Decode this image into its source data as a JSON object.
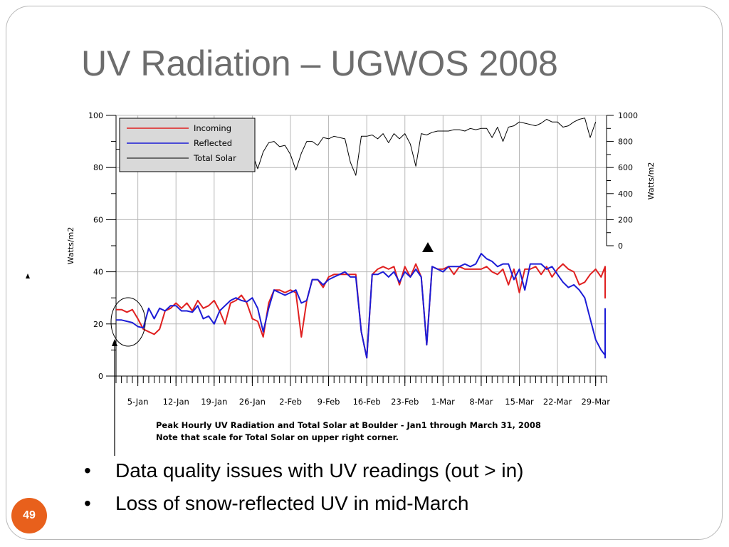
{
  "slide": {
    "title": "UV Radiation – UGWOS 2008",
    "page_number": "49",
    "bullets": [
      "Data quality issues with UV readings (out > in)",
      "Loss of snow-reflected UV in mid-March"
    ],
    "caption_line1": "Peak Hourly UV Radiation and Total Solar at Boulder - Jan1 through March 31, 2008",
    "caption_line2": "Note that scale for Total Solar on upper right corner."
  },
  "chart_data": {
    "type": "line",
    "ylabel": "Watts/m2",
    "y2label": "Watts/m2",
    "ylim": [
      0,
      100
    ],
    "y2lim": [
      0,
      1000
    ],
    "yticks": [
      0,
      20,
      40,
      60,
      80,
      100
    ],
    "y2ticks": [
      0,
      200,
      400,
      600,
      800,
      1000
    ],
    "xticks": [
      "5-Jan",
      "12-Jan",
      "19-Jan",
      "26-Jan",
      "2-Feb",
      "9-Feb",
      "16-Feb",
      "23-Feb",
      "1-Mar",
      "8-Mar",
      "15-Mar",
      "22-Mar",
      "29-Mar"
    ],
    "xlim": [
      1,
      91
    ],
    "grid": true,
    "legend_position": "top-left",
    "annotations": [
      "circle around Jan 1-5 UV readings",
      "up-arrow marker near 27-Feb above the UV curves",
      "long arrow pointing up to the circled region"
    ],
    "series": [
      {
        "name": "Incoming",
        "axis": "left",
        "color": "#e02020",
        "points": [
          [
            1,
            25.5
          ],
          [
            2,
            25.5
          ],
          [
            3,
            24.5
          ],
          [
            4,
            25.5
          ],
          [
            5,
            22
          ],
          [
            6,
            18
          ],
          [
            7,
            17
          ],
          [
            8,
            16
          ],
          [
            9,
            18
          ],
          [
            10,
            25
          ],
          [
            11,
            26
          ],
          [
            12,
            28
          ],
          [
            13,
            26
          ],
          [
            14,
            28
          ],
          [
            15,
            25
          ],
          [
            16,
            29
          ],
          [
            17,
            26
          ],
          [
            18,
            27
          ],
          [
            19,
            29
          ],
          [
            20,
            25
          ],
          [
            21,
            20
          ],
          [
            22,
            28
          ],
          [
            23,
            29
          ],
          [
            24,
            31
          ],
          [
            25,
            28
          ],
          [
            26,
            22
          ],
          [
            27,
            21
          ],
          [
            28,
            15
          ],
          [
            29,
            28
          ],
          [
            30,
            33
          ],
          [
            31,
            33
          ],
          [
            32,
            32
          ],
          [
            33,
            33
          ],
          [
            34,
            32
          ],
          [
            35,
            15
          ],
          [
            36,
            29
          ],
          [
            37,
            37
          ],
          [
            38,
            37
          ],
          [
            39,
            34
          ],
          [
            40,
            38
          ],
          [
            41,
            39
          ],
          [
            42,
            39
          ],
          [
            43,
            39
          ],
          [
            44,
            39
          ],
          [
            45,
            39
          ],
          [
            46,
            17
          ],
          [
            47,
            7
          ],
          [
            48,
            39
          ],
          [
            49,
            41
          ],
          [
            50,
            42
          ],
          [
            51,
            41
          ],
          [
            52,
            42
          ],
          [
            53,
            35
          ],
          [
            54,
            42
          ],
          [
            55,
            38
          ],
          [
            56,
            43
          ],
          [
            57,
            38
          ],
          [
            58,
            12
          ],
          [
            59,
            42
          ],
          [
            60,
            41
          ],
          [
            61,
            41
          ],
          [
            62,
            42
          ],
          [
            63,
            39
          ],
          [
            64,
            42
          ],
          [
            65,
            41
          ],
          [
            66,
            41
          ],
          [
            67,
            41
          ],
          [
            68,
            41
          ],
          [
            69,
            42
          ],
          [
            70,
            40
          ],
          [
            71,
            39
          ],
          [
            72,
            41
          ],
          [
            73,
            35
          ],
          [
            74,
            41
          ],
          [
            75,
            32
          ],
          [
            76,
            41
          ],
          [
            77,
            41
          ],
          [
            78,
            42
          ],
          [
            79,
            39
          ],
          [
            80,
            42
          ],
          [
            81,
            38
          ],
          [
            82,
            41
          ],
          [
            83,
            43
          ],
          [
            84,
            41
          ],
          [
            85,
            40
          ],
          [
            86,
            35
          ],
          [
            87,
            36
          ],
          [
            88,
            39
          ],
          [
            89,
            41
          ],
          [
            90,
            38
          ],
          [
            91,
            42
          ],
          [
            92,
            30
          ],
          [
            93,
            41
          ]
        ]
      },
      {
        "name": "Reflected",
        "axis": "left",
        "color": "#1c1cd6",
        "points": [
          [
            1,
            21.5
          ],
          [
            2,
            21.5
          ],
          [
            3,
            21
          ],
          [
            4,
            20.5
          ],
          [
            5,
            19
          ],
          [
            6,
            18.5
          ],
          [
            7,
            26
          ],
          [
            8,
            22
          ],
          [
            9,
            26
          ],
          [
            10,
            25
          ],
          [
            11,
            27
          ],
          [
            12,
            27
          ],
          [
            13,
            25
          ],
          [
            14,
            25
          ],
          [
            15,
            24.5
          ],
          [
            16,
            27
          ],
          [
            17,
            22
          ],
          [
            18,
            23
          ],
          [
            19,
            20
          ],
          [
            20,
            25
          ],
          [
            21,
            27
          ],
          [
            22,
            29
          ],
          [
            23,
            30
          ],
          [
            24,
            29
          ],
          [
            25,
            28.5
          ],
          [
            26,
            30
          ],
          [
            27,
            26
          ],
          [
            28,
            17
          ],
          [
            29,
            26
          ],
          [
            30,
            33
          ],
          [
            31,
            32
          ],
          [
            32,
            31
          ],
          [
            33,
            32
          ],
          [
            34,
            33
          ],
          [
            35,
            28
          ],
          [
            36,
            29
          ],
          [
            37,
            37
          ],
          [
            38,
            37
          ],
          [
            39,
            35
          ],
          [
            40,
            37
          ],
          [
            41,
            38
          ],
          [
            42,
            39
          ],
          [
            43,
            40
          ],
          [
            44,
            38
          ],
          [
            45,
            38
          ],
          [
            46,
            17
          ],
          [
            47,
            7
          ],
          [
            48,
            39
          ],
          [
            49,
            39
          ],
          [
            50,
            40
          ],
          [
            51,
            38
          ],
          [
            52,
            40
          ],
          [
            53,
            36
          ],
          [
            54,
            40
          ],
          [
            55,
            38
          ],
          [
            56,
            41
          ],
          [
            57,
            38
          ],
          [
            58,
            12
          ],
          [
            59,
            42
          ],
          [
            60,
            41
          ],
          [
            61,
            40
          ],
          [
            62,
            42
          ],
          [
            63,
            42
          ],
          [
            64,
            42
          ],
          [
            65,
            43
          ],
          [
            66,
            42
          ],
          [
            67,
            43
          ],
          [
            68,
            47
          ],
          [
            69,
            45
          ],
          [
            70,
            44
          ],
          [
            71,
            42
          ],
          [
            72,
            43
          ],
          [
            73,
            43
          ],
          [
            74,
            37
          ],
          [
            75,
            41
          ],
          [
            76,
            33
          ],
          [
            77,
            43
          ],
          [
            78,
            43
          ],
          [
            79,
            43
          ],
          [
            80,
            41
          ],
          [
            81,
            42
          ],
          [
            82,
            39
          ],
          [
            83,
            36
          ],
          [
            84,
            34
          ],
          [
            85,
            35
          ],
          [
            86,
            33
          ],
          [
            87,
            30
          ],
          [
            88,
            22
          ],
          [
            89,
            14
          ],
          [
            90,
            10
          ],
          [
            91,
            8
          ],
          [
            92,
            7
          ],
          [
            93,
            7
          ],
          [
            94,
            20
          ],
          [
            95,
            26
          ]
        ]
      },
      {
        "name": "Total Solar",
        "axis": "right",
        "color": "#000000",
        "points": [
          [
            1,
            740
          ],
          [
            2,
            740
          ],
          [
            3,
            730
          ],
          [
            4,
            740
          ],
          [
            5,
            670
          ],
          [
            6,
            660
          ],
          [
            7,
            640
          ],
          [
            8,
            620
          ],
          [
            9,
            730
          ],
          [
            10,
            710
          ],
          [
            11,
            750
          ],
          [
            12,
            740
          ],
          [
            13,
            760
          ],
          [
            14,
            640
          ],
          [
            15,
            760
          ],
          [
            16,
            760
          ],
          [
            17,
            720
          ],
          [
            18,
            760
          ],
          [
            19,
            730
          ],
          [
            20,
            700
          ],
          [
            21,
            740
          ],
          [
            22,
            730
          ],
          [
            23,
            770
          ],
          [
            24,
            740
          ],
          [
            25,
            660
          ],
          [
            26,
            710
          ],
          [
            27,
            590
          ],
          [
            28,
            720
          ],
          [
            29,
            790
          ],
          [
            30,
            800
          ],
          [
            31,
            760
          ],
          [
            32,
            770
          ],
          [
            33,
            700
          ],
          [
            34,
            580
          ],
          [
            35,
            710
          ],
          [
            36,
            800
          ],
          [
            37,
            800
          ],
          [
            38,
            770
          ],
          [
            39,
            830
          ],
          [
            40,
            820
          ],
          [
            41,
            840
          ],
          [
            42,
            830
          ],
          [
            43,
            820
          ],
          [
            44,
            640
          ],
          [
            45,
            540
          ],
          [
            46,
            840
          ],
          [
            47,
            840
          ],
          [
            48,
            850
          ],
          [
            49,
            820
          ],
          [
            50,
            860
          ],
          [
            51,
            790
          ],
          [
            52,
            860
          ],
          [
            53,
            820
          ],
          [
            54,
            860
          ],
          [
            55,
            780
          ],
          [
            56,
            610
          ],
          [
            57,
            860
          ],
          [
            58,
            850
          ],
          [
            59,
            870
          ],
          [
            60,
            880
          ],
          [
            61,
            880
          ],
          [
            62,
            880
          ],
          [
            63,
            890
          ],
          [
            64,
            890
          ],
          [
            65,
            880
          ],
          [
            66,
            900
          ],
          [
            67,
            890
          ],
          [
            68,
            900
          ],
          [
            69,
            900
          ],
          [
            70,
            830
          ],
          [
            71,
            910
          ],
          [
            72,
            800
          ],
          [
            73,
            910
          ],
          [
            74,
            920
          ],
          [
            75,
            950
          ],
          [
            76,
            940
          ],
          [
            77,
            930
          ],
          [
            78,
            920
          ],
          [
            79,
            940
          ],
          [
            80,
            970
          ],
          [
            81,
            950
          ],
          [
            82,
            950
          ],
          [
            83,
            910
          ],
          [
            84,
            920
          ],
          [
            85,
            950
          ],
          [
            86,
            970
          ],
          [
            87,
            980
          ],
          [
            88,
            830
          ],
          [
            89,
            950
          ]
        ]
      }
    ]
  }
}
